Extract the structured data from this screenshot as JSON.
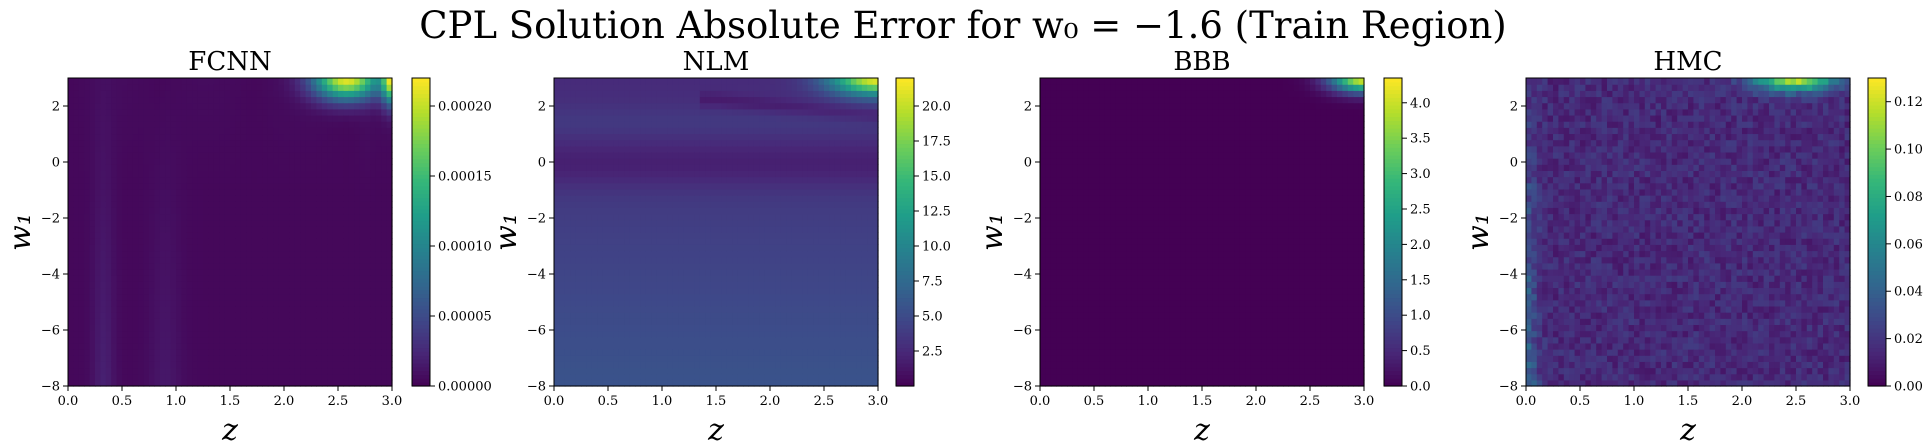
{
  "figure_title": "CPL Solution Absolute Error for w₀ = −1.6 (Train Region)",
  "colors": {
    "viridis": [
      "#440154",
      "#482878",
      "#3e4989",
      "#31688e",
      "#26828e",
      "#1f9e89",
      "#35b779",
      "#6ece58",
      "#b5de2b",
      "#fde725"
    ]
  },
  "chart_data": [
    {
      "type": "heatmap",
      "title": "FCNN",
      "xlabel": "z",
      "ylabel": "w₁",
      "xlim": [
        0.0,
        3.0
      ],
      "ylim": [
        -8,
        3
      ],
      "xticks": [
        "0.0",
        "0.5",
        "1.0",
        "1.5",
        "2.0",
        "2.5",
        "3.0"
      ],
      "yticks": [
        "−8",
        "−6",
        "−4",
        "−2",
        "0",
        "2"
      ],
      "colorbar": {
        "min": 0.0,
        "max": 0.00022,
        "ticks": [
          "0.00000",
          "0.00005",
          "0.00010",
          "0.00015",
          "0.00020"
        ],
        "tick_values": [
          0.0,
          5e-05,
          0.0001,
          0.00015,
          0.0002
        ]
      },
      "pattern": "fcnn"
    },
    {
      "type": "heatmap",
      "title": "NLM",
      "xlabel": "z",
      "ylabel": "w₁",
      "xlim": [
        0.0,
        3.0
      ],
      "ylim": [
        -8,
        3
      ],
      "xticks": [
        "0.0",
        "0.5",
        "1.0",
        "1.5",
        "2.0",
        "2.5",
        "3.0"
      ],
      "yticks": [
        "−8",
        "−6",
        "−4",
        "−2",
        "0",
        "2"
      ],
      "colorbar": {
        "min": 0.0,
        "max": 22,
        "ticks": [
          "2.5",
          "5.0",
          "7.5",
          "10.0",
          "12.5",
          "15.0",
          "17.5",
          "20.0"
        ],
        "tick_values": [
          2.5,
          5.0,
          7.5,
          10.0,
          12.5,
          15.0,
          17.5,
          20.0
        ]
      },
      "pattern": "nlm"
    },
    {
      "type": "heatmap",
      "title": "BBB",
      "xlabel": "z",
      "ylabel": "w₁",
      "xlim": [
        0.0,
        3.0
      ],
      "ylim": [
        -8,
        3
      ],
      "xticks": [
        "0.0",
        "0.5",
        "1.0",
        "1.5",
        "2.0",
        "2.5",
        "3.0"
      ],
      "yticks": [
        "−8",
        "−6",
        "−4",
        "−2",
        "0",
        "2"
      ],
      "colorbar": {
        "min": 0.0,
        "max": 4.35,
        "ticks": [
          "0.0",
          "0.5",
          "1.0",
          "1.5",
          "2.0",
          "2.5",
          "3.0",
          "3.5",
          "4.0"
        ],
        "tick_values": [
          0.0,
          0.5,
          1.0,
          1.5,
          2.0,
          2.5,
          3.0,
          3.5,
          4.0
        ]
      },
      "pattern": "bbb"
    },
    {
      "type": "heatmap",
      "title": "HMC",
      "xlabel": "z",
      "ylabel": "w₁",
      "xlim": [
        0.0,
        3.0
      ],
      "ylim": [
        -8,
        3
      ],
      "xticks": [
        "0.0",
        "0.5",
        "1.0",
        "1.5",
        "2.0",
        "2.5",
        "3.0"
      ],
      "yticks": [
        "−8",
        "−6",
        "−4",
        "−2",
        "0",
        "2"
      ],
      "colorbar": {
        "min": 0.0,
        "max": 0.13,
        "ticks": [
          "0.00",
          "0.02",
          "0.04",
          "0.06",
          "0.08",
          "0.10",
          "0.12"
        ],
        "tick_values": [
          0.0,
          0.02,
          0.04,
          0.06,
          0.08,
          0.1,
          0.12
        ]
      },
      "pattern": "hmc"
    }
  ]
}
